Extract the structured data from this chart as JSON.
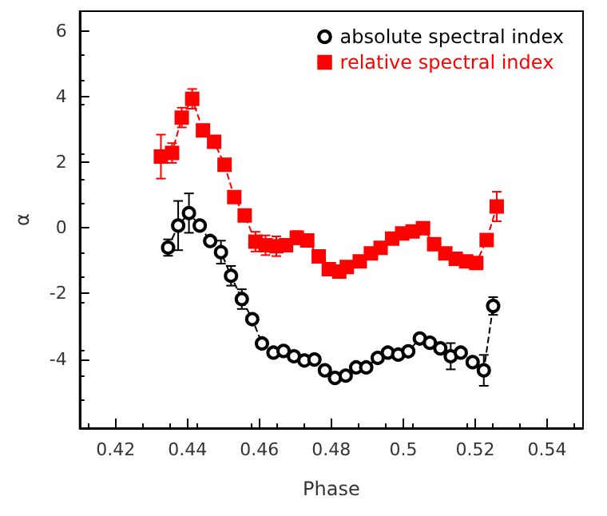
{
  "chart_data": {
    "type": "line",
    "xlabel": "Phase",
    "ylabel": "α",
    "xlim": [
      0.41,
      0.55
    ],
    "ylim": [
      -6.1,
      6.6
    ],
    "xticks": [
      0.42,
      0.44,
      0.46,
      0.48,
      0.5,
      0.52,
      0.54
    ],
    "yticks": [
      -4,
      -2,
      0,
      2,
      4,
      6
    ],
    "grid": false,
    "legend": "top right",
    "line_style": "dashed",
    "series": [
      {
        "name": "absolute spectral index",
        "color": "#000000",
        "marker": "circle",
        "x": [
          0.4346,
          0.4374,
          0.4404,
          0.4434,
          0.4463,
          0.4493,
          0.4521,
          0.4551,
          0.458,
          0.4607,
          0.4639,
          0.4667,
          0.4696,
          0.4725,
          0.4753,
          0.4782,
          0.481,
          0.484,
          0.4869,
          0.4897,
          0.4929,
          0.4957,
          0.4986,
          0.5014,
          0.5046,
          0.5074,
          0.5103,
          0.5132,
          0.516,
          0.5193,
          0.5224,
          0.525
        ],
        "values": [
          -0.6,
          0.07,
          0.45,
          0.07,
          -0.4,
          -0.74,
          -1.46,
          -2.17,
          -2.78,
          -3.52,
          -3.8,
          -3.75,
          -3.91,
          -4.04,
          -4.01,
          -4.34,
          -4.57,
          -4.5,
          -4.25,
          -4.25,
          -3.96,
          -3.8,
          -3.86,
          -3.76,
          -3.37,
          -3.5,
          -3.67,
          -3.91,
          -3.8,
          -4.09,
          -4.34,
          -2.38
        ],
        "errors": [
          0.25,
          0.75,
          0.6,
          null,
          null,
          0.35,
          0.3,
          0.3,
          null,
          null,
          null,
          null,
          null,
          null,
          null,
          null,
          null,
          null,
          null,
          null,
          null,
          null,
          null,
          null,
          null,
          null,
          null,
          0.4,
          null,
          null,
          0.47,
          0.27
        ]
      },
      {
        "name": "relative spectral index",
        "color": "#ff0000",
        "marker": "square",
        "x": [
          0.4326,
          0.4357,
          0.4384,
          0.4413,
          0.4443,
          0.4474,
          0.4503,
          0.453,
          0.4559,
          0.4589,
          0.4617,
          0.4647,
          0.4674,
          0.4704,
          0.4733,
          0.4765,
          0.4793,
          0.4822,
          0.4843,
          0.4879,
          0.491,
          0.4937,
          0.4969,
          0.4997,
          0.5026,
          0.5055,
          0.5086,
          0.5117,
          0.5146,
          0.5175,
          0.5203,
          0.5232,
          0.526
        ],
        "values": [
          2.17,
          2.28,
          3.36,
          3.93,
          2.97,
          2.62,
          1.92,
          0.94,
          0.38,
          -0.42,
          -0.53,
          -0.56,
          -0.53,
          -0.3,
          -0.38,
          -0.87,
          -1.26,
          -1.33,
          -1.19,
          -1.02,
          -0.78,
          -0.61,
          -0.33,
          -0.17,
          -0.11,
          -0.01,
          -0.5,
          -0.78,
          -0.94,
          -1.02,
          -1.07,
          -0.37,
          0.65
        ],
        "errors": [
          0.67,
          0.3,
          0.3,
          0.3,
          null,
          null,
          null,
          null,
          null,
          0.3,
          0.3,
          0.3,
          null,
          0.2,
          null,
          null,
          null,
          null,
          null,
          null,
          null,
          null,
          null,
          null,
          null,
          null,
          null,
          null,
          null,
          null,
          null,
          null,
          0.45
        ]
      }
    ]
  }
}
